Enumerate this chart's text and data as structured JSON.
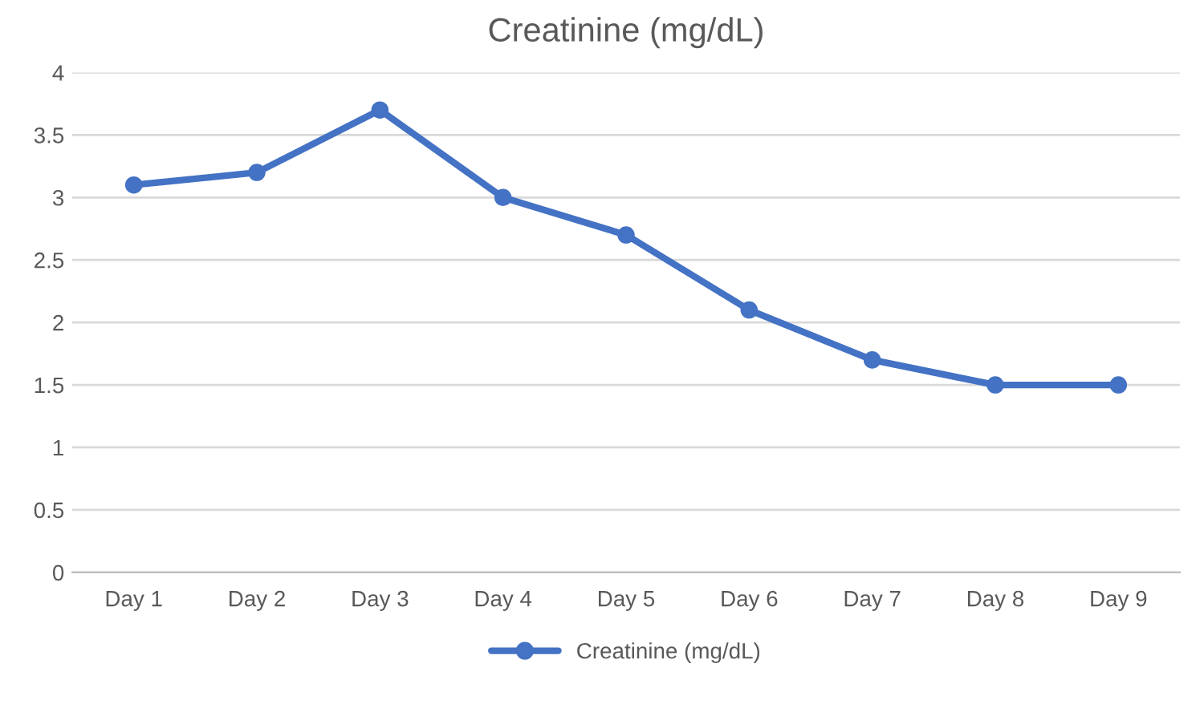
{
  "chart_data": {
    "type": "line",
    "title": "Creatinine (mg/dL)",
    "categories": [
      "Day 1",
      "Day 2",
      "Day 3",
      "Day 4",
      "Day 5",
      "Day 6",
      "Day 7",
      "Day 8",
      "Day 9"
    ],
    "series": [
      {
        "name": "Creatinine (mg/dL)",
        "color": "#4472c4",
        "values": [
          3.1,
          3.2,
          3.7,
          3.0,
          2.7,
          2.1,
          1.7,
          1.5,
          1.5
        ]
      }
    ],
    "ylim": [
      0,
      4
    ],
    "yticks": [
      0,
      0.5,
      1,
      1.5,
      2,
      2.5,
      3,
      3.5,
      4
    ],
    "grid": "y",
    "legend": "bottom",
    "marker": "circle",
    "line_style": "solid"
  }
}
